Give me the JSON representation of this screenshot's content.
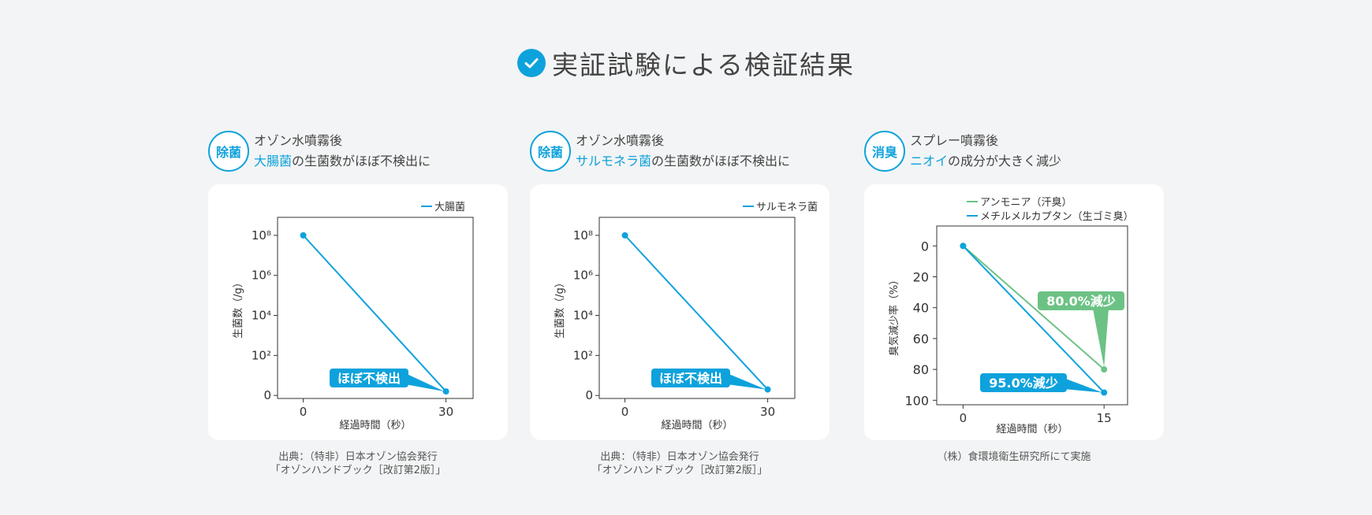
{
  "page": {
    "title": "実証試験による検証結果",
    "accent": "#0ea2dc",
    "green": "#6cc284"
  },
  "panels": [
    {
      "badge": "除菌",
      "line1": "オゾン水噴霧後",
      "line2_highlight": "大腸菌",
      "line2_rest": "の生菌数がほぼ不検出に",
      "source_line1": "出典：（特非）日本オゾン協会発行",
      "source_line2": "「オゾンハンドブック［改訂第2版］」"
    },
    {
      "badge": "除菌",
      "line1": "オゾン水噴霧後",
      "line2_highlight": "サルモネラ菌",
      "line2_rest": "の生菌数がほぼ不検出に",
      "source_line1": "出典：（特非）日本オゾン協会発行",
      "source_line2": "「オゾンハンドブック［改訂第2版］」"
    },
    {
      "badge": "消臭",
      "line1": "スプレー噴霧後",
      "line2_highlight": "ニオイ",
      "line2_rest": "の成分が大きく減少",
      "source_line1": "（株）食環境衛生研究所にて実施",
      "source_line2": ""
    }
  ],
  "chart_data": [
    {
      "type": "line",
      "x": [
        0,
        30
      ],
      "xlabel": "経過時間（秒）",
      "ylabel": "生菌数（/g）",
      "y_scale": "log",
      "yticks": [
        "0",
        "10²",
        "10⁴",
        "10⁶",
        "10⁸"
      ],
      "series": [
        {
          "name": "大腸菌",
          "color": "#0ea2dc",
          "values": [
            8.0,
            0.2
          ]
        }
      ],
      "annotation": "ほぼ不検出",
      "legend": "top-right"
    },
    {
      "type": "line",
      "x": [
        0,
        30
      ],
      "xlabel": "経過時間（秒）",
      "ylabel": "生菌数（/g）",
      "y_scale": "log",
      "yticks": [
        "0",
        "10²",
        "10⁴",
        "10⁶",
        "10⁸"
      ],
      "series": [
        {
          "name": "サルモネラ菌",
          "color": "#0ea2dc",
          "values": [
            8.0,
            0.3
          ]
        }
      ],
      "annotation": "ほぼ不検出",
      "legend": "top-right"
    },
    {
      "type": "line",
      "x": [
        0,
        15
      ],
      "xlabel": "経過時間（秒）",
      "ylabel": "臭気減少率（%）",
      "ylim": [
        0,
        100
      ],
      "y_inverted": true,
      "yticks": [
        "0",
        "20",
        "40",
        "60",
        "80",
        "100"
      ],
      "series": [
        {
          "name": "アンモニア（汗臭）",
          "color": "#6cc284",
          "values": [
            0,
            80
          ],
          "label": "80.0%減少"
        },
        {
          "name": "メチルメルカプタン（生ゴミ臭）",
          "color": "#0ea2dc",
          "values": [
            0,
            95
          ],
          "label": "95.0%減少"
        }
      ],
      "legend": "top-left"
    }
  ]
}
